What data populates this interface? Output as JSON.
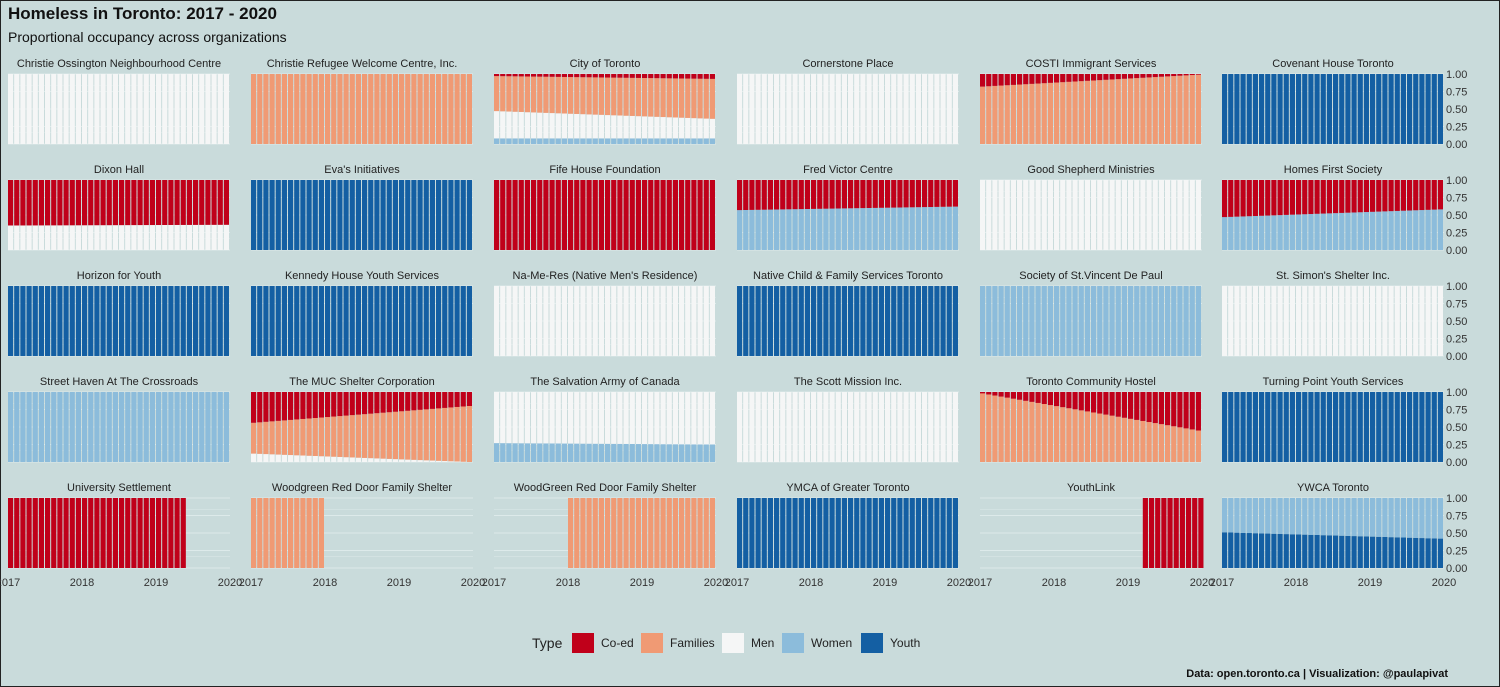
{
  "title": "Homeless in Toronto: 2017 - 2020",
  "subtitle": "Proportional occupancy across organizations",
  "caption": "Data: open.toronto.ca | Visualization: @paulapivat",
  "colors": {
    "Co-ed": "#c0001a",
    "Families": "#f09a74",
    "Men": "#f5f6f6",
    "Women": "#8cbcdb",
    "Youth": "#145fa3",
    "background": "#c9dbdb",
    "grid": "#ddeaea"
  },
  "chart_data": {
    "type": "bar",
    "stacked": "proportional",
    "facet_layout": {
      "columns": 6,
      "rows": 5
    },
    "x_ticks": [
      "2017",
      "2018",
      "2019",
      "2020"
    ],
    "xlim": [
      2017,
      2020
    ],
    "y_ticks": [
      "0.00",
      "0.25",
      "0.50",
      "0.75",
      "1.00"
    ],
    "ylim": [
      0,
      1
    ],
    "bars_per_year": 12,
    "stack_order": [
      "Youth",
      "Women",
      "Men",
      "Families",
      "Co-ed"
    ],
    "legend": {
      "title": "Type",
      "position": "bottom",
      "entries": [
        "Co-ed",
        "Families",
        "Men",
        "Women",
        "Youth"
      ]
    },
    "facets": [
      {
        "name": "Christie Ossington Neighbourhood Centre",
        "range": [
          2017.0,
          2019.95
        ],
        "segments": [
          {
            "type": "Men",
            "start": 1,
            "end": 1
          }
        ]
      },
      {
        "name": "Christie Refugee Welcome Centre, Inc.",
        "range": [
          2017.0,
          2019.95
        ],
        "segments": [
          {
            "type": "Families",
            "start": 1,
            "end": 1
          }
        ]
      },
      {
        "name": "City of Toronto",
        "range": [
          2017.0,
          2019.95
        ],
        "segments": [
          {
            "type": "Women",
            "start": 0.08,
            "end": 0.08
          },
          {
            "type": "Men",
            "start": 0.39,
            "end": 0.28
          },
          {
            "type": "Families",
            "start": 0.5,
            "end": 0.57
          },
          {
            "type": "Co-ed",
            "start": 0.03,
            "end": 0.07
          }
        ]
      },
      {
        "name": "Cornerstone Place",
        "range": [
          2017.0,
          2019.95
        ],
        "segments": [
          {
            "type": "Men",
            "start": 1,
            "end": 1
          }
        ]
      },
      {
        "name": "COSTI Immigrant Services",
        "range": [
          2017.0,
          2019.95
        ],
        "segments": [
          {
            "type": "Families",
            "start": 0.82,
            "end": 0.99
          },
          {
            "type": "Co-ed",
            "start": 0.18,
            "end": 0.01
          }
        ]
      },
      {
        "name": "Covenant House Toronto",
        "range": [
          2017.0,
          2019.95
        ],
        "segments": [
          {
            "type": "Youth",
            "start": 1,
            "end": 1
          }
        ]
      },
      {
        "name": "Dixon Hall",
        "range": [
          2017.0,
          2019.95
        ],
        "segments": [
          {
            "type": "Men",
            "start": 0.35,
            "end": 0.36
          },
          {
            "type": "Co-ed",
            "start": 0.65,
            "end": 0.64
          }
        ]
      },
      {
        "name": "Eva's Initiatives",
        "range": [
          2017.0,
          2019.95
        ],
        "segments": [
          {
            "type": "Youth",
            "start": 1,
            "end": 1
          }
        ]
      },
      {
        "name": "Fife House Foundation",
        "range": [
          2017.0,
          2019.95
        ],
        "segments": [
          {
            "type": "Co-ed",
            "start": 1,
            "end": 1
          }
        ]
      },
      {
        "name": "Fred Victor Centre",
        "range": [
          2017.0,
          2019.95
        ],
        "segments": [
          {
            "type": "Women",
            "start": 0.57,
            "end": 0.62
          },
          {
            "type": "Co-ed",
            "start": 0.43,
            "end": 0.38
          }
        ]
      },
      {
        "name": "Good Shepherd Ministries",
        "range": [
          2017.0,
          2019.95
        ],
        "segments": [
          {
            "type": "Men",
            "start": 1,
            "end": 1
          }
        ]
      },
      {
        "name": "Homes First Society",
        "range": [
          2017.0,
          2019.95
        ],
        "segments": [
          {
            "type": "Women",
            "start": 0.47,
            "end": 0.58
          },
          {
            "type": "Co-ed",
            "start": 0.53,
            "end": 0.42
          }
        ]
      },
      {
        "name": "Horizon for Youth",
        "range": [
          2017.0,
          2019.95
        ],
        "segments": [
          {
            "type": "Youth",
            "start": 1,
            "end": 1
          }
        ]
      },
      {
        "name": "Kennedy House Youth Services",
        "range": [
          2017.0,
          2019.95
        ],
        "segments": [
          {
            "type": "Youth",
            "start": 1,
            "end": 1
          }
        ]
      },
      {
        "name": "Na-Me-Res (Native Men's Residence)",
        "range": [
          2017.0,
          2019.95
        ],
        "segments": [
          {
            "type": "Men",
            "start": 1,
            "end": 1
          }
        ]
      },
      {
        "name": "Native Child & Family Services Toronto",
        "range": [
          2017.0,
          2019.95
        ],
        "segments": [
          {
            "type": "Youth",
            "start": 1,
            "end": 1
          }
        ]
      },
      {
        "name": "Society of St.Vincent De Paul",
        "range": [
          2017.0,
          2019.95
        ],
        "segments": [
          {
            "type": "Women",
            "start": 1,
            "end": 1
          }
        ]
      },
      {
        "name": "St. Simon's Shelter Inc.",
        "range": [
          2017.0,
          2019.95
        ],
        "segments": [
          {
            "type": "Men",
            "start": 1,
            "end": 1
          }
        ]
      },
      {
        "name": "Street Haven At The Crossroads",
        "range": [
          2017.0,
          2019.95
        ],
        "segments": [
          {
            "type": "Women",
            "start": 1,
            "end": 1
          }
        ]
      },
      {
        "name": "The MUC Shelter Corporation",
        "range": [
          2017.0,
          2019.95
        ],
        "segments": [
          {
            "type": "Men",
            "start": 0.12,
            "end": 0.0
          },
          {
            "type": "Families",
            "start": 0.44,
            "end": 0.8
          },
          {
            "type": "Co-ed",
            "start": 0.44,
            "end": 0.2
          }
        ]
      },
      {
        "name": "The Salvation Army of Canada",
        "range": [
          2017.0,
          2019.95
        ],
        "segments": [
          {
            "type": "Women",
            "start": 0.27,
            "end": 0.25
          },
          {
            "type": "Men",
            "start": 0.73,
            "end": 0.75
          }
        ]
      },
      {
        "name": "The Scott Mission Inc.",
        "range": [
          2017.0,
          2019.95
        ],
        "segments": [
          {
            "type": "Men",
            "start": 1,
            "end": 1
          }
        ]
      },
      {
        "name": "Toronto Community Hostel",
        "range": [
          2017.0,
          2019.95
        ],
        "segments": [
          {
            "type": "Families",
            "start": 0.98,
            "end": 0.45
          },
          {
            "type": "Co-ed",
            "start": 0.02,
            "end": 0.55
          }
        ]
      },
      {
        "name": "Turning Point Youth Services",
        "range": [
          2017.0,
          2019.95
        ],
        "segments": [
          {
            "type": "Youth",
            "start": 1,
            "end": 1
          }
        ]
      },
      {
        "name": "University Settlement",
        "range": [
          2017.0,
          2019.35
        ],
        "segments": [
          {
            "type": "Co-ed",
            "start": 1,
            "end": 1
          }
        ]
      },
      {
        "name": "Woodgreen Red Door Family Shelter",
        "range": [
          2017.0,
          2017.95
        ],
        "segments": [
          {
            "type": "Families",
            "start": 1,
            "end": 1
          }
        ]
      },
      {
        "name": "WoodGreen Red Door Family Shelter",
        "range": [
          2018.0,
          2019.95
        ],
        "segments": [
          {
            "type": "Families",
            "start": 1,
            "end": 1
          }
        ]
      },
      {
        "name": "YMCA of Greater Toronto",
        "range": [
          2017.0,
          2019.95
        ],
        "segments": [
          {
            "type": "Youth",
            "start": 1,
            "end": 1
          }
        ]
      },
      {
        "name": "YouthLink",
        "range": [
          2019.2,
          2019.95
        ],
        "segments": [
          {
            "type": "Co-ed",
            "start": 1,
            "end": 1
          }
        ]
      },
      {
        "name": "YWCA Toronto",
        "range": [
          2017.0,
          2019.95
        ],
        "segments": [
          {
            "type": "Youth",
            "start": 0.51,
            "end": 0.42
          },
          {
            "type": "Women",
            "start": 0.49,
            "end": 0.58
          }
        ]
      }
    ]
  }
}
